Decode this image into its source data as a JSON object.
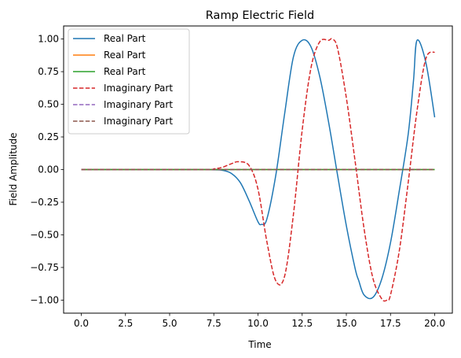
{
  "chart_data": {
    "type": "line",
    "title": "Ramp Electric Field",
    "xlabel": "Time",
    "ylabel": "Field Amplitude",
    "xlim": [
      -1.0,
      21.0
    ],
    "ylim": [
      -1.1,
      1.1
    ],
    "xticks": [
      0.0,
      2.5,
      5.0,
      7.5,
      10.0,
      12.5,
      15.0,
      17.5,
      20.0
    ],
    "xtick_labels": [
      "0.0",
      "2.5",
      "5.0",
      "7.5",
      "10.0",
      "12.5",
      "15.0",
      "17.5",
      "20.0"
    ],
    "yticks": [
      -1.0,
      -0.75,
      -0.5,
      -0.25,
      0.0,
      0.25,
      0.5,
      0.75,
      1.0
    ],
    "ytick_labels": [
      "−1.00",
      "−0.75",
      "−0.50",
      "−0.25",
      "0.00",
      "0.25",
      "0.50",
      "0.75",
      "1.00"
    ],
    "grid": false,
    "legend_position": "top-left",
    "series": [
      {
        "name": "Real Part",
        "color": "#1f77b4",
        "dash": "solid",
        "x": [
          0,
          6.5,
          7.0,
          7.5,
          8.0,
          8.5,
          9.0,
          9.5,
          10.0,
          10.2,
          10.5,
          11.0,
          11.5,
          12.0,
          12.5,
          13.0,
          13.5,
          14.0,
          14.5,
          15.0,
          15.5,
          15.7,
          16.0,
          16.5,
          17.0,
          17.5,
          18.0,
          18.5,
          18.8,
          19.0,
          19.5,
          20.0
        ],
        "y": [
          0,
          0,
          0,
          -0.002,
          -0.006,
          -0.03,
          -0.1,
          -0.24,
          -0.4,
          -0.42,
          -0.38,
          -0.05,
          0.42,
          0.86,
          0.99,
          0.94,
          0.71,
          0.36,
          -0.04,
          -0.43,
          -0.76,
          -0.85,
          -0.96,
          -0.98,
          -0.84,
          -0.56,
          -0.16,
          0.27,
          0.68,
          0.99,
          0.82,
          0.4
        ]
      },
      {
        "name": "Real Part",
        "color": "#ff7f0e",
        "dash": "solid",
        "x": [
          0,
          20
        ],
        "y": [
          0,
          0
        ]
      },
      {
        "name": "Real Part",
        "color": "#2ca02c",
        "dash": "solid",
        "x": [
          0,
          20
        ],
        "y": [
          0,
          0
        ]
      },
      {
        "name": "Imaginary Part",
        "color": "#d62728",
        "dash": "dashed",
        "x": [
          0,
          7.0,
          7.5,
          8.0,
          8.5,
          8.9,
          9.5,
          10.0,
          10.5,
          11.0,
          11.5,
          12.0,
          12.5,
          13.0,
          13.5,
          14.0,
          14.2,
          14.5,
          15.0,
          15.5,
          16.0,
          16.5,
          17.0,
          17.3,
          17.5,
          18.0,
          18.5,
          19.0,
          19.5,
          20.0
        ],
        "y": [
          0,
          0,
          0.005,
          0.018,
          0.045,
          0.06,
          0.03,
          -0.15,
          -0.55,
          -0.85,
          -0.82,
          -0.35,
          0.3,
          0.78,
          0.98,
          0.99,
          1.0,
          0.93,
          0.55,
          0.06,
          -0.45,
          -0.83,
          -0.99,
          -1.0,
          -0.96,
          -0.62,
          -0.1,
          0.45,
          0.85,
          0.9
        ]
      },
      {
        "name": "Imaginary Part",
        "color": "#9467bd",
        "dash": "dashed",
        "x": [
          0,
          20
        ],
        "y": [
          0,
          0
        ]
      },
      {
        "name": "Imaginary Part",
        "color": "#8c564b",
        "dash": "dashed",
        "x": [
          0,
          20
        ],
        "y": [
          0,
          0
        ]
      }
    ]
  }
}
